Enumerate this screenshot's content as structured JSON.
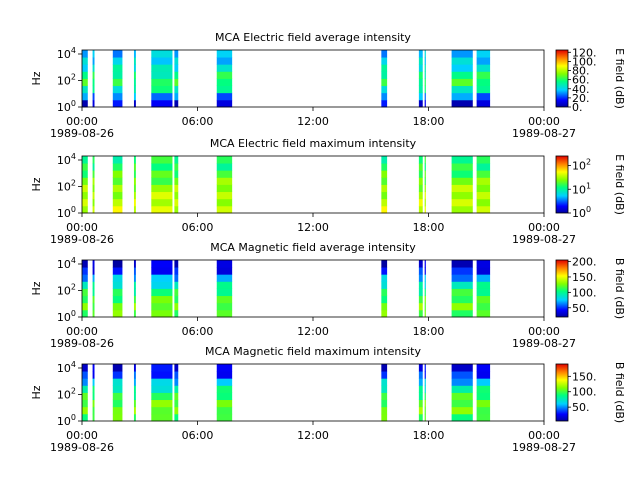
{
  "chart_data": [
    {
      "type": "heatmap",
      "title": "MCA  Electric field average intensity",
      "ylabel": "Hz",
      "colorbar_label": "E field (dB)",
      "colorbar_ticks": [
        "120.",
        "100.",
        "80.",
        "60.",
        "40.",
        "20.",
        "0."
      ],
      "colorbar_tick_values": [
        120,
        100,
        80,
        60,
        40,
        20,
        0
      ],
      "colorbar_range": [
        0,
        125
      ],
      "colorbar_scale": "linear",
      "yticks": [
        "10^4",
        "10^2",
        "10^0"
      ],
      "ylim": [
        1,
        20000
      ],
      "yscale": "log",
      "x_ticks": [
        "00:00",
        "06:00",
        "12:00",
        "18:00",
        "00:00"
      ],
      "x_dates": [
        "1989-08-26",
        "1989-08-27"
      ],
      "xlim_hours": [
        0,
        24
      ],
      "data_intervals_hours": [
        [
          0.0,
          0.3
        ],
        [
          0.55,
          0.65
        ],
        [
          1.6,
          2.1
        ],
        [
          2.7,
          2.8
        ],
        [
          3.6,
          4.7
        ],
        [
          4.8,
          5.0
        ],
        [
          7.0,
          7.8
        ],
        [
          15.55,
          15.85
        ],
        [
          17.5,
          17.7
        ],
        [
          17.8,
          17.85
        ],
        [
          19.2,
          20.3
        ],
        [
          20.5,
          21.2
        ]
      ],
      "value_profile_db": [
        10,
        30,
        50,
        60,
        55,
        45,
        40,
        35
      ]
    },
    {
      "type": "heatmap",
      "title": "MCA  Electric field maximum intensity",
      "ylabel": "Hz",
      "colorbar_label": "E field (dB)",
      "colorbar_ticks": [
        "10^2",
        "10^1",
        "10^0"
      ],
      "colorbar_tick_values": [
        2,
        1,
        0
      ],
      "colorbar_range": [
        0,
        2.4
      ],
      "colorbar_scale": "log",
      "yticks": [
        "10^4",
        "10^2",
        "10^0"
      ],
      "ylim": [
        1,
        20000
      ],
      "yscale": "log",
      "x_ticks": [
        "00:00",
        "06:00",
        "12:00",
        "18:00",
        "00:00"
      ],
      "x_dates": [
        "1989-08-26",
        "1989-08-27"
      ],
      "xlim_hours": [
        0,
        24
      ],
      "data_intervals_hours": [
        [
          0.0,
          0.3
        ],
        [
          0.55,
          0.65
        ],
        [
          1.6,
          2.1
        ],
        [
          2.7,
          2.8
        ],
        [
          3.6,
          4.7
        ],
        [
          4.8,
          5.0
        ],
        [
          7.0,
          7.8
        ],
        [
          15.55,
          15.85
        ],
        [
          17.5,
          17.7
        ],
        [
          17.8,
          17.85
        ],
        [
          19.2,
          20.3
        ],
        [
          20.5,
          21.2
        ]
      ],
      "value_profile_db": [
        1.6,
        1.55,
        1.5,
        1.45,
        1.35,
        1.25,
        1.15,
        1.1
      ]
    },
    {
      "type": "heatmap",
      "title": "MCA  Magnetic field average intensity",
      "ylabel": "Hz",
      "colorbar_label": "B field (dB)",
      "colorbar_ticks": [
        "200.",
        "150.",
        "100.",
        "50."
      ],
      "colorbar_tick_values": [
        200,
        150,
        100,
        50
      ],
      "colorbar_range": [
        20,
        205
      ],
      "colorbar_scale": "linear",
      "yticks": [
        "10^4",
        "10^2",
        "10^0"
      ],
      "ylim": [
        1,
        20000
      ],
      "yscale": "log",
      "x_ticks": [
        "00:00",
        "06:00",
        "12:00",
        "18:00",
        "00:00"
      ],
      "x_dates": [
        "1989-08-26",
        "1989-08-27"
      ],
      "xlim_hours": [
        0,
        24
      ],
      "data_intervals_hours": [
        [
          0.0,
          0.3
        ],
        [
          0.55,
          0.65
        ],
        [
          1.6,
          2.1
        ],
        [
          2.7,
          2.8
        ],
        [
          3.6,
          4.7
        ],
        [
          4.8,
          5.0
        ],
        [
          7.0,
          7.8
        ],
        [
          15.55,
          15.85
        ],
        [
          17.5,
          17.7
        ],
        [
          17.8,
          17.85
        ],
        [
          19.2,
          20.3
        ],
        [
          20.5,
          21.2
        ]
      ],
      "value_profile_db": [
        120,
        125,
        115,
        105,
        90,
        70,
        45,
        30
      ]
    },
    {
      "type": "heatmap",
      "title": "MCA  Magnetic field maximum intensity",
      "ylabel": "Hz",
      "colorbar_label": "B field (dB)",
      "colorbar_ticks": [
        "150.",
        "100.",
        "50."
      ],
      "colorbar_tick_values": [
        150,
        100,
        50
      ],
      "colorbar_range": [
        5,
        190
      ],
      "colorbar_scale": "linear",
      "yticks": [
        "10^4",
        "10^2",
        "10^0"
      ],
      "ylim": [
        1,
        20000
      ],
      "yscale": "log",
      "x_ticks": [
        "00:00",
        "06:00",
        "12:00",
        "18:00",
        "00:00"
      ],
      "x_dates": [
        "1989-08-26",
        "1989-08-27"
      ],
      "xlim_hours": [
        0,
        24
      ],
      "data_intervals_hours": [
        [
          0.0,
          0.3
        ],
        [
          0.55,
          0.65
        ],
        [
          1.6,
          2.1
        ],
        [
          2.7,
          2.8
        ],
        [
          3.6,
          4.7
        ],
        [
          4.8,
          5.0
        ],
        [
          7.0,
          7.8
        ],
        [
          15.55,
          15.85
        ],
        [
          17.5,
          17.7
        ],
        [
          17.8,
          17.85
        ],
        [
          19.2,
          20.3
        ],
        [
          20.5,
          21.2
        ]
      ],
      "value_profile_db": [
        100,
        110,
        105,
        95,
        80,
        60,
        35,
        20
      ]
    }
  ]
}
